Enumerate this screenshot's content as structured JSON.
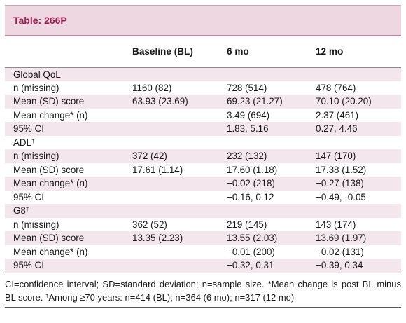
{
  "table": {
    "title": "Table: 266P",
    "columns": [
      "",
      "Baseline (BL)",
      "6 mo",
      "12 mo"
    ],
    "rows": [
      {
        "type": "section",
        "label": "Global QoL",
        "sup": "",
        "cells": [
          "",
          "",
          ""
        ],
        "shade": true
      },
      {
        "type": "data",
        "label": "n (missing)",
        "cells": [
          "1160 (82)",
          "728 (514)",
          "478 (764)"
        ],
        "shade": false
      },
      {
        "type": "data",
        "label": "Mean (SD) score",
        "cells": [
          "63.93 (23.69)",
          "69.23 (21.27)",
          "70.10 (20.20)"
        ],
        "shade": true
      },
      {
        "type": "data",
        "label": "Mean change* (n)",
        "cells": [
          "",
          "3.49 (694)",
          "2.37 (461)"
        ],
        "shade": false
      },
      {
        "type": "data",
        "label": "95% CI",
        "cells": [
          "",
          "1.83, 5.16",
          "0.27, 4.46"
        ],
        "shade": true
      },
      {
        "type": "section",
        "label": "ADL",
        "sup": "†",
        "cells": [
          "",
          "",
          ""
        ],
        "shade": false
      },
      {
        "type": "data",
        "label": "n (missing)",
        "cells": [
          "372 (42)",
          "232 (132)",
          "147 (170)"
        ],
        "shade": true
      },
      {
        "type": "data",
        "label": "Mean (SD) score",
        "cells": [
          "17.61 (1.14)",
          "17.60 (1.18)",
          "17.38 (1.52)"
        ],
        "shade": false
      },
      {
        "type": "data",
        "label": "Mean change* (n)",
        "cells": [
          "",
          "−0.02 (218)",
          "−0.27 (138)"
        ],
        "shade": true
      },
      {
        "type": "data",
        "label": "95% CI",
        "cells": [
          "",
          "−0.16, 0.12",
          "−0.49, -0.05"
        ],
        "shade": false
      },
      {
        "type": "section",
        "label": "G8",
        "sup": "†",
        "cells": [
          "",
          "",
          ""
        ],
        "shade": true
      },
      {
        "type": "data",
        "label": "n (missing)",
        "cells": [
          "362 (52)",
          "219 (145)",
          "143 (174)"
        ],
        "shade": false
      },
      {
        "type": "data",
        "label": "Mean (SD) score",
        "cells": [
          "13.35 (2.23)",
          "13.55 (2.03)",
          "13.69 (1.97)"
        ],
        "shade": true
      },
      {
        "type": "data",
        "label": "Mean change* (n)",
        "cells": [
          "",
          "−0.01 (200)",
          "−0.02 (131)"
        ],
        "shade": false
      },
      {
        "type": "data",
        "label": "95% CI",
        "cells": [
          "",
          "−0.32, 0.31",
          "−0.39, 0.34"
        ],
        "shade": true
      }
    ]
  },
  "footnote": {
    "part1": "CI=confidence interval; SD=standard deviation; n=sample size. *Mean change is post BL minus BL score. ",
    "dagger": "†",
    "part2": "Among ≥70 years: n=414 (BL); n=364 (6 mo); n=317 (12 mo)"
  },
  "colors": {
    "title_text": "#9b1d4f",
    "title_background": "#eed7e1",
    "shaded_row": "#f3e6ec"
  }
}
